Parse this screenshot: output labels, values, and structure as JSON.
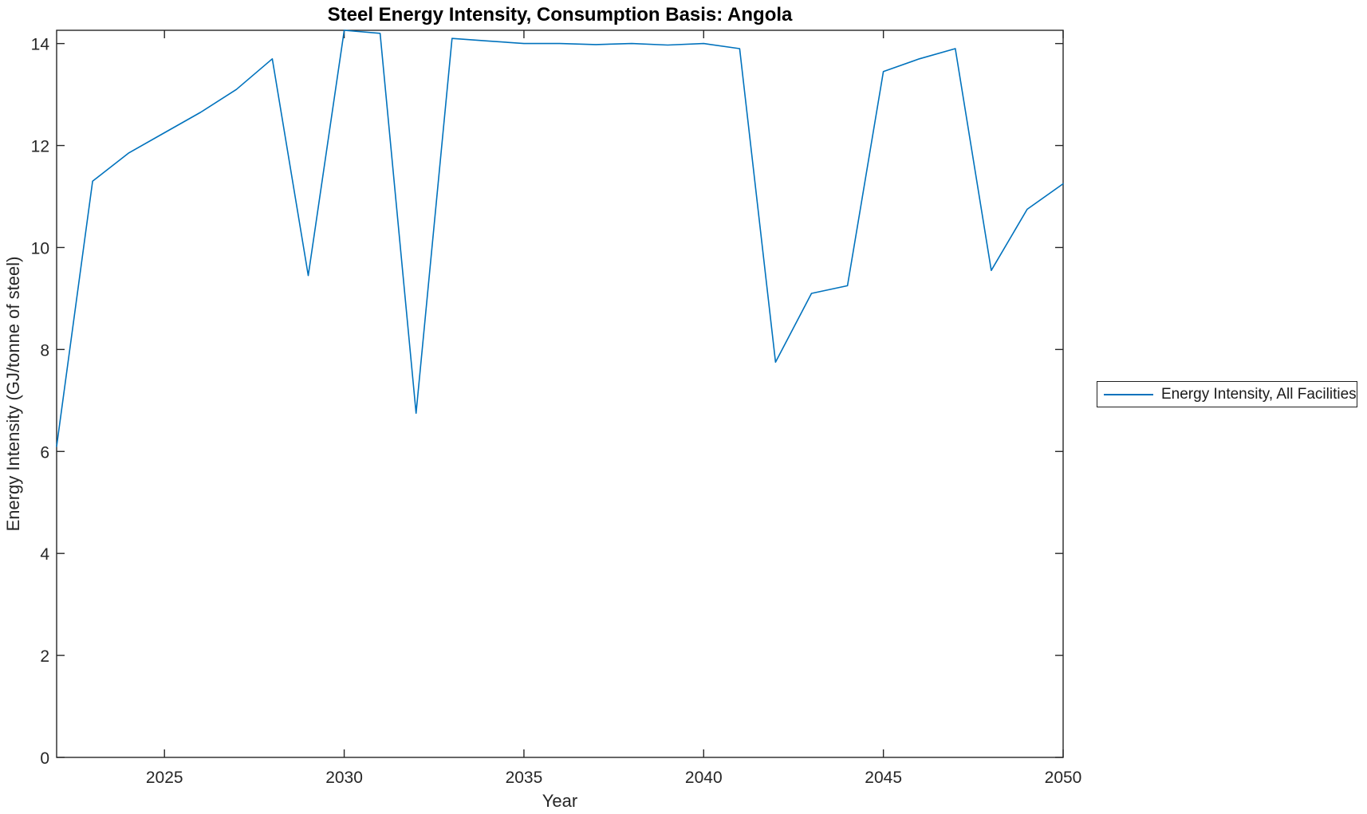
{
  "figure": {
    "background": "#ffffff",
    "axis_color": "#262626",
    "legend": {
      "position": "outside-right",
      "entries": [
        {
          "label": "Energy Intensity, All Facilities",
          "color": "#0072BD"
        }
      ]
    }
  },
  "chart_data": {
    "type": "line",
    "title": "Steel Energy Intensity, Consumption Basis: Angola",
    "xlabel": "Year",
    "ylabel": "Energy Intensity (GJ/tonne of steel)",
    "x": [
      2022,
      2023,
      2024,
      2025,
      2026,
      2027,
      2028,
      2029,
      2030,
      2031,
      2032,
      2033,
      2034,
      2035,
      2036,
      2037,
      2038,
      2039,
      2040,
      2041,
      2042,
      2043,
      2044,
      2045,
      2046,
      2047,
      2048,
      2049,
      2050
    ],
    "series": [
      {
        "name": "Energy Intensity, All Facilities",
        "color": "#0072BD",
        "values": [
          6.1,
          11.3,
          11.85,
          12.25,
          12.65,
          13.1,
          13.7,
          9.45,
          14.3,
          14.2,
          6.75,
          14.1,
          14.05,
          14.0,
          14.0,
          13.98,
          14.0,
          13.97,
          14.0,
          13.9,
          7.75,
          9.1,
          9.25,
          13.45,
          13.7,
          13.9,
          9.55,
          10.75,
          11.25
        ]
      }
    ],
    "xlim": [
      2022,
      2050
    ],
    "ylim": [
      0,
      14.26
    ],
    "xticks": [
      2025,
      2030,
      2035,
      2040,
      2045,
      2050
    ],
    "yticks": [
      0,
      2,
      4,
      6,
      8,
      10,
      12,
      14
    ],
    "grid": false,
    "tick_direction": "in",
    "box": true,
    "legend_position": "outside-right"
  }
}
